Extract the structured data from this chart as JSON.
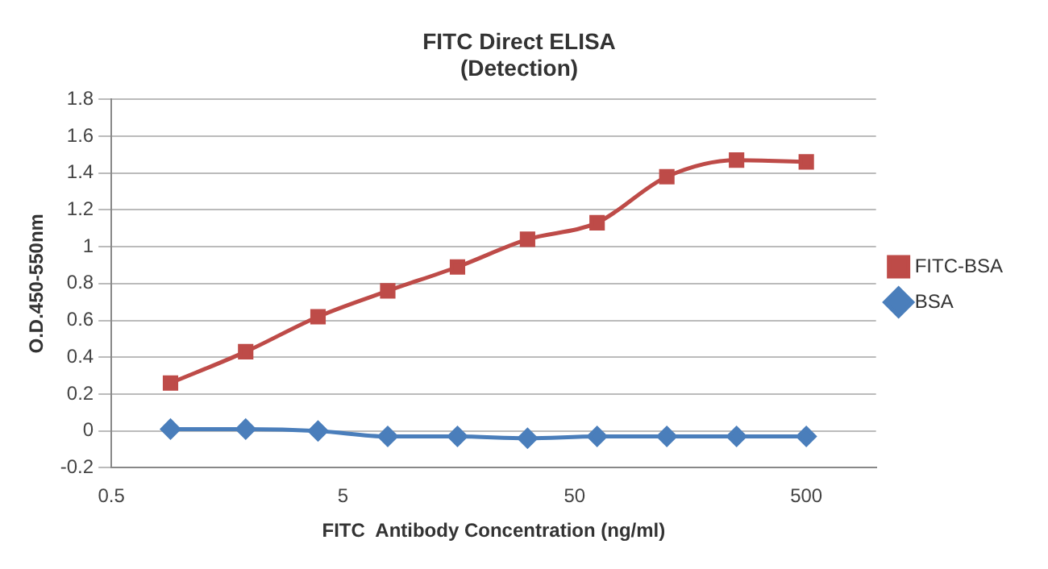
{
  "chart_data": {
    "type": "line",
    "title": "FITC Direct ELISA",
    "subtitle": "(Detection)",
    "xlabel": "FITC  Antibody Concentration (ng/ml)",
    "ylabel": "O.D.450-550nm",
    "x": [
      0.9,
      1.9,
      3.9,
      7.8,
      15.6,
      31.3,
      62.5,
      125,
      250,
      500
    ],
    "series": [
      {
        "name": "FITC-BSA",
        "color": "#be4b48",
        "marker": "square",
        "values": [
          0.26,
          0.43,
          0.62,
          0.76,
          0.89,
          1.04,
          1.13,
          1.38,
          1.47,
          1.46
        ]
      },
      {
        "name": "BSA",
        "color": "#4a7ebb",
        "marker": "diamond",
        "values": [
          0.01,
          0.01,
          0.0,
          -0.03,
          -0.03,
          -0.04,
          -0.03,
          -0.03,
          -0.03,
          -0.03
        ]
      }
    ],
    "log": "x",
    "xlim": [
      0.5,
      1000
    ],
    "xticks": [
      0.5,
      5,
      50,
      500
    ],
    "ylim": [
      -0.2,
      1.8
    ],
    "yticks": [
      -0.2,
      0,
      0.2,
      0.4,
      0.6,
      0.8,
      1,
      1.2,
      1.4,
      1.6,
      1.8
    ],
    "grid": "y",
    "legend": "right",
    "line_style": "solid"
  }
}
